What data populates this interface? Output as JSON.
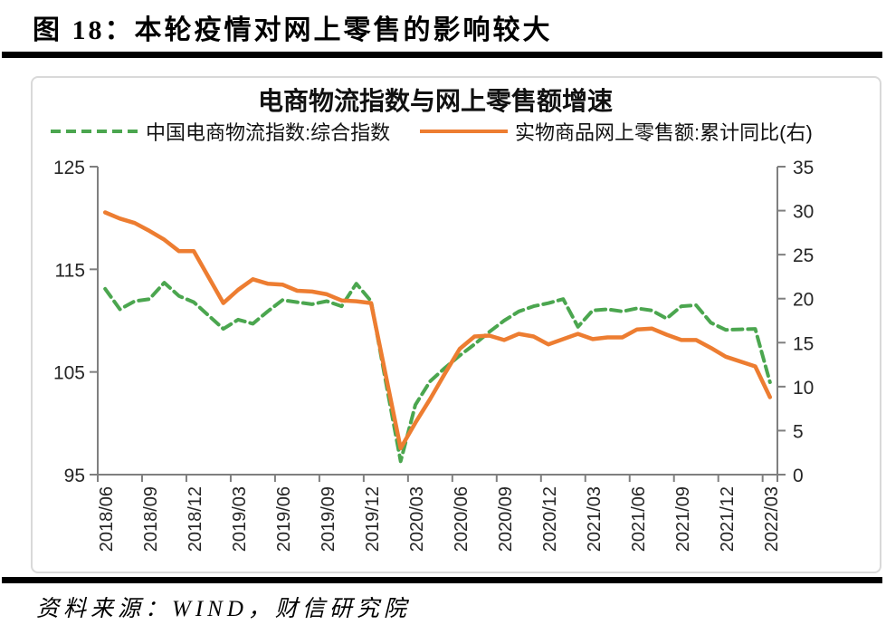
{
  "header": {
    "title": "图 18：本轮疫情对网上零售的影响较大"
  },
  "source": {
    "text": "资料来源：WIND，财信研究院"
  },
  "colors": {
    "green_series": "#4BA64F",
    "orange_series": "#ED7D31",
    "axis": "#7F7F7F",
    "panel_border": "#D9D9D9",
    "tick_text": "#262626",
    "rule": "#000000"
  },
  "chart_data": {
    "type": "line",
    "title": "电商物流指数与网上零售额增速",
    "grid": false,
    "legend_position": "top",
    "x": [
      "2018/06",
      "2018/07",
      "2018/08",
      "2018/09",
      "2018/10",
      "2018/11",
      "2018/12",
      "2019/01",
      "2019/02",
      "2019/03",
      "2019/04",
      "2019/05",
      "2019/06",
      "2019/07",
      "2019/08",
      "2019/09",
      "2019/10",
      "2019/11",
      "2019/12",
      "2020/01",
      "2020/02",
      "2020/03",
      "2020/04",
      "2020/05",
      "2020/06",
      "2020/07",
      "2020/08",
      "2020/09",
      "2020/10",
      "2020/11",
      "2020/12",
      "2021/01",
      "2021/02",
      "2021/03",
      "2021/04",
      "2021/05",
      "2021/06",
      "2021/07",
      "2021/08",
      "2021/09",
      "2021/10",
      "2021/11",
      "2021/12",
      "2022/01",
      "2022/02",
      "2022/03"
    ],
    "x_tick_labels": [
      "2018/06",
      "2018/09",
      "2018/12",
      "2019/03",
      "2019/06",
      "2019/09",
      "2019/12",
      "2020/03",
      "2020/06",
      "2020/09",
      "2020/12",
      "2021/03",
      "2021/06",
      "2021/09",
      "2021/12",
      "2022/03"
    ],
    "left_axis": {
      "min": 95,
      "max": 125,
      "ticks": [
        125,
        115,
        105,
        95
      ]
    },
    "right_axis": {
      "min": 0,
      "max": 35,
      "ticks": [
        35,
        30,
        25,
        20,
        15,
        10,
        5,
        0
      ]
    },
    "series": [
      {
        "name": "中国电商物流指数:综合指数",
        "axis": "left",
        "style": "dashed",
        "color": "#4BA64F",
        "values": [
          113.1,
          111.1,
          111.9,
          112.1,
          113.7,
          112.4,
          111.8,
          110.5,
          109.2,
          110.1,
          109.7,
          110.9,
          112.0,
          111.8,
          111.6,
          111.9,
          111.4,
          113.6,
          111.9,
          104.0,
          96.3,
          101.8,
          104.1,
          105.4,
          106.6,
          107.7,
          108.9,
          110.0,
          110.9,
          111.4,
          111.7,
          112.1,
          109.4,
          111.0,
          111.1,
          110.9,
          111.2,
          111.0,
          110.2,
          111.4,
          111.5,
          109.8,
          109.1,
          109.15,
          109.2,
          104.0
        ]
      },
      {
        "name": "实物商品网上零售额:累计同比(右)",
        "axis": "right",
        "style": "solid",
        "color": "#ED7D31",
        "values": [
          29.8,
          29.1,
          28.6,
          27.7,
          26.7,
          25.4,
          25.4,
          null,
          19.5,
          21.0,
          22.2,
          21.7,
          21.6,
          20.9,
          20.8,
          20.5,
          19.8,
          19.7,
          19.5,
          null,
          3.0,
          5.9,
          8.6,
          11.5,
          14.3,
          15.7,
          15.8,
          15.3,
          16.0,
          15.7,
          14.8,
          null,
          16.0,
          15.4,
          15.6,
          15.6,
          16.5,
          16.6,
          15.9,
          15.3,
          15.3,
          14.4,
          13.4,
          null,
          12.3,
          8.8
        ]
      }
    ]
  }
}
